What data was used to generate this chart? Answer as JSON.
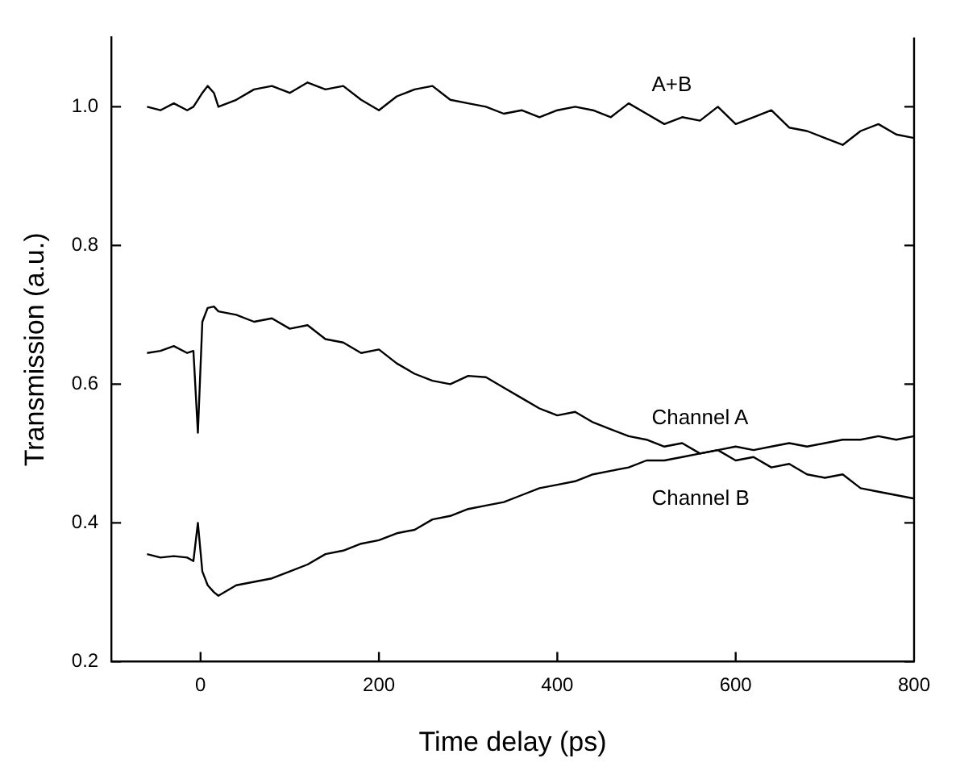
{
  "chart_data": {
    "type": "line",
    "xlabel": "Time delay (ps)",
    "ylabel": "Transmission (a.u.)",
    "x": [
      -60,
      -45,
      -30,
      -15,
      -8,
      -3,
      2,
      8,
      15,
      20,
      40,
      60,
      80,
      100,
      120,
      140,
      160,
      180,
      200,
      220,
      240,
      260,
      280,
      300,
      320,
      340,
      360,
      380,
      400,
      420,
      440,
      460,
      480,
      500,
      520,
      540,
      560,
      580,
      600,
      620,
      640,
      660,
      680,
      700,
      720,
      740,
      760,
      780,
      800
    ],
    "series": [
      {
        "name": "A+B",
        "color": "#000000",
        "values": [
          1.0,
          0.995,
          1.005,
          0.995,
          1.0,
          1.01,
          1.02,
          1.03,
          1.02,
          1.0,
          1.01,
          1.025,
          1.03,
          1.02,
          1.035,
          1.025,
          1.03,
          1.01,
          0.995,
          1.015,
          1.025,
          1.03,
          1.01,
          1.005,
          1.0,
          0.99,
          0.995,
          0.985,
          0.995,
          1.0,
          0.995,
          0.985,
          1.005,
          0.99,
          0.975,
          0.985,
          0.98,
          1.0,
          0.975,
          0.985,
          0.995,
          0.97,
          0.965,
          0.955,
          0.945,
          0.965,
          0.975,
          0.96,
          0.955
        ]
      },
      {
        "name": "Channel A",
        "color": "#000000",
        "values": [
          0.645,
          0.648,
          0.655,
          0.645,
          0.648,
          0.53,
          0.69,
          0.71,
          0.712,
          0.705,
          0.7,
          0.69,
          0.695,
          0.68,
          0.685,
          0.665,
          0.66,
          0.645,
          0.65,
          0.63,
          0.615,
          0.605,
          0.6,
          0.612,
          0.61,
          0.595,
          0.58,
          0.565,
          0.555,
          0.56,
          0.545,
          0.535,
          0.525,
          0.52,
          0.51,
          0.515,
          0.5,
          0.505,
          0.49,
          0.495,
          0.48,
          0.485,
          0.47,
          0.465,
          0.47,
          0.45,
          0.445,
          0.44,
          0.435
        ]
      },
      {
        "name": "Channel B",
        "color": "#000000",
        "values": [
          0.355,
          0.35,
          0.352,
          0.35,
          0.345,
          0.4,
          0.33,
          0.31,
          0.3,
          0.295,
          0.31,
          0.315,
          0.32,
          0.33,
          0.34,
          0.355,
          0.36,
          0.37,
          0.375,
          0.385,
          0.39,
          0.405,
          0.41,
          0.42,
          0.425,
          0.43,
          0.44,
          0.45,
          0.455,
          0.46,
          0.47,
          0.475,
          0.48,
          0.49,
          0.49,
          0.495,
          0.5,
          0.505,
          0.51,
          0.505,
          0.51,
          0.515,
          0.51,
          0.515,
          0.52,
          0.52,
          0.525,
          0.52,
          0.525
        ]
      }
    ],
    "xlim": [
      -100,
      800
    ],
    "xticks": [
      0,
      200,
      400,
      600,
      800
    ],
    "ylim": [
      0.2,
      1.1
    ],
    "yticks": [
      0.2,
      0.4,
      0.6,
      0.8,
      {
        "value": 1,
        "label": "1.0"
      }
    ],
    "marker": "none",
    "line_style": "solid",
    "legend": false
  }
}
